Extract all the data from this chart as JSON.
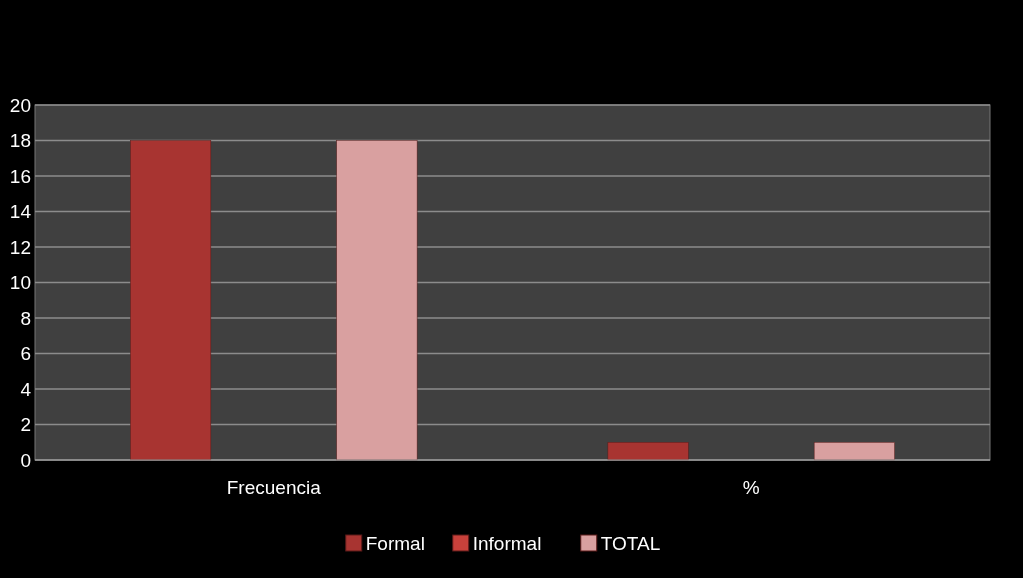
{
  "chart_data": {
    "type": "bar",
    "categories": [
      "Frecuencia",
      "%"
    ],
    "series": [
      {
        "name": "Formal",
        "color": "#a83431",
        "values": [
          18,
          1
        ]
      },
      {
        "name": "Informal",
        "color": "#c8413b",
        "values": [
          0,
          0
        ]
      },
      {
        "name": "TOTAL",
        "color": "#d9a0a0",
        "values": [
          18,
          1
        ]
      }
    ],
    "ylim": [
      0,
      20
    ],
    "yticks": [
      0,
      2,
      4,
      6,
      8,
      10,
      12,
      14,
      16,
      18,
      20
    ],
    "grid": "y",
    "legend": "bottom"
  }
}
